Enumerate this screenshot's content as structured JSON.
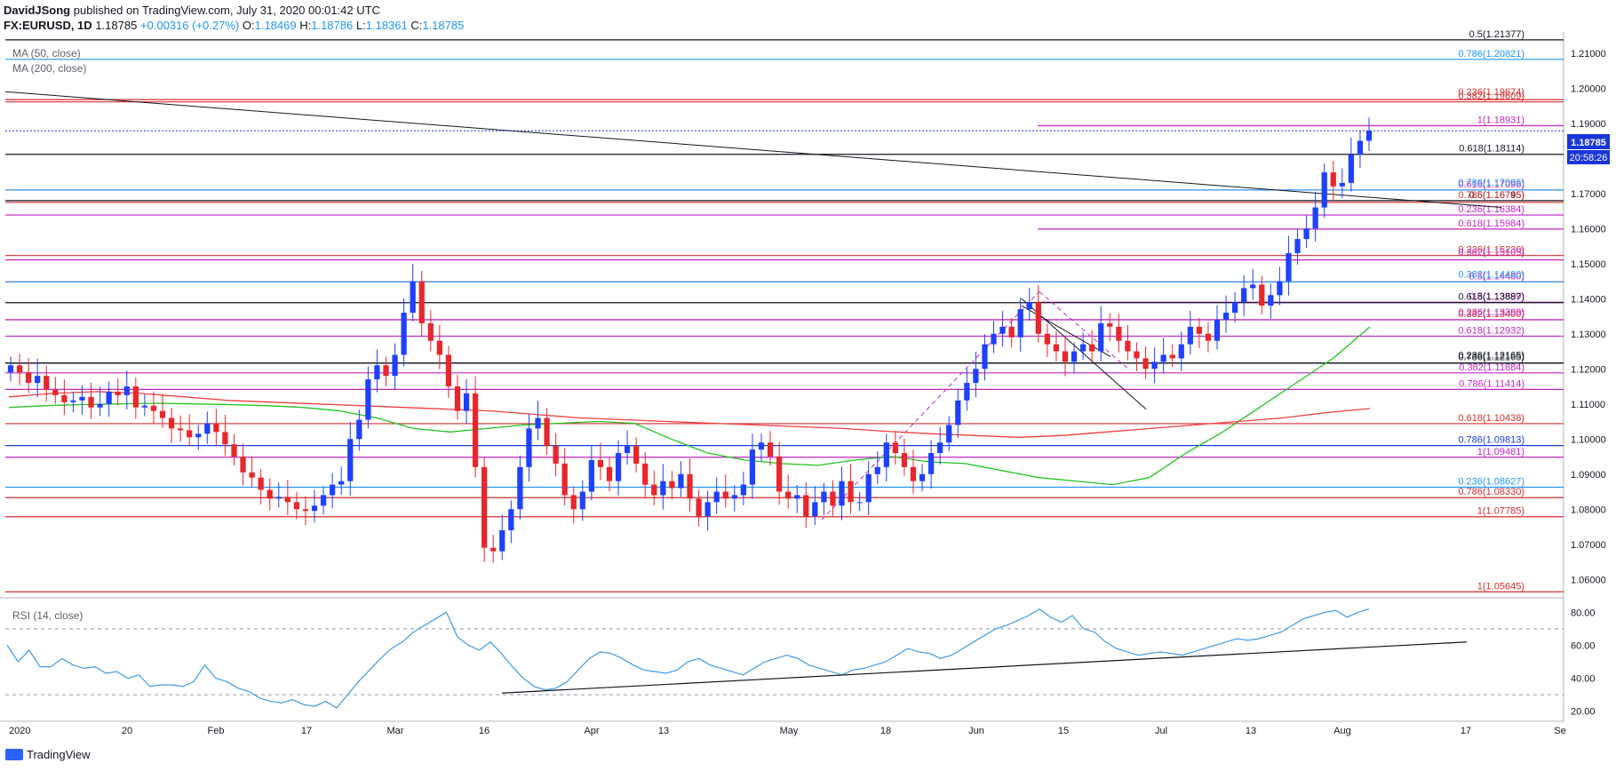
{
  "header": {
    "author": "DavidJSong",
    "published_text": "published on TradingView.com, July 31, 2020 00:01:42 UTC",
    "symbol": "FX:EURUSD, 1D",
    "last": "1.18785",
    "change": "+0.00316 (+0.27%)",
    "o_label": "O:",
    "o_value": "1.18469",
    "h_label": "H:",
    "h_value": "1.18786",
    "l_label": "L:",
    "l_value": "1.18361",
    "c_label": "C:",
    "c_value": "1.18785"
  },
  "legend": {
    "ma50": "MA (50, close)",
    "ma200": "MA (200, close)",
    "rsi": "RSI (14, close)"
  },
  "footer": {
    "brand": "TradingView"
  },
  "badges": {
    "price": "1.18785",
    "countdown": "20:58:26"
  },
  "colors": {
    "up": "#1e40ff",
    "down": "#e8262c",
    "ma50": "#22c322",
    "ma200": "#ef3f3f",
    "fib_black": "#131722",
    "fib_blue": "#2196f3",
    "fib_red": "#d32f2f",
    "fib_magenta": "#c226c2",
    "rsi": "#3d9be9",
    "price_badge": "#1936d6"
  },
  "chart_data": [
    {
      "type": "candlestick",
      "symbol": "FX:EURUSD",
      "interval": "1D",
      "ylim": [
        1.055,
        1.215
      ],
      "y_ticks": [
        "1.21000",
        "1.20000",
        "1.19000",
        "1.18000",
        "1.17000",
        "1.16000",
        "1.15000",
        "1.14000",
        "1.13000",
        "1.12000",
        "1.11000",
        "1.10000",
        "1.09000",
        "1.08000",
        "1.07000",
        "1.06000"
      ],
      "x_ticks": [
        "2020",
        "20",
        "Feb",
        "17",
        "Mar",
        "16",
        "Apr",
        "13",
        "May",
        "18",
        "Jun",
        "15",
        "Jul",
        "13",
        "Aug",
        "17",
        "Se"
      ],
      "close_series": [
        1.121,
        1.119,
        1.116,
        1.118,
        1.114,
        1.1125,
        1.1105,
        1.111,
        1.112,
        1.109,
        1.11,
        1.1135,
        1.1125,
        1.115,
        1.109,
        1.1095,
        1.108,
        1.106,
        1.103,
        1.1025,
        1.1005,
        1.1015,
        1.1045,
        1.102,
        1.0985,
        1.095,
        1.0905,
        1.089,
        1.0855,
        1.083,
        1.0835,
        1.082,
        1.08,
        1.0795,
        1.081,
        1.084,
        1.087,
        1.088,
        1.1,
        1.1055,
        1.117,
        1.121,
        1.118,
        1.124,
        1.136,
        1.145,
        1.133,
        1.128,
        1.124,
        1.115,
        1.108,
        1.113,
        1.092,
        1.069,
        1.068,
        1.074,
        1.08,
        1.092,
        1.103,
        1.106,
        1.098,
        1.093,
        1.084,
        1.08,
        1.085,
        1.094,
        1.092,
        1.088,
        1.096,
        1.098,
        1.093,
        1.087,
        1.084,
        1.088,
        1.086,
        1.09,
        1.083,
        1.078,
        1.082,
        1.085,
        1.083,
        1.084,
        1.087,
        1.097,
        1.099,
        1.095,
        1.085,
        1.083,
        1.084,
        1.078,
        1.082,
        1.085,
        1.081,
        1.088,
        1.082,
        1.082,
        1.09,
        1.092,
        1.099,
        1.096,
        1.092,
        1.088,
        1.09,
        1.096,
        1.099,
        1.104,
        1.111,
        1.116,
        1.12,
        1.127,
        1.13,
        1.132,
        1.129,
        1.137,
        1.139,
        1.13,
        1.127,
        1.125,
        1.122,
        1.125,
        1.127,
        1.125,
        1.133,
        1.132,
        1.128,
        1.125,
        1.123,
        1.12,
        1.122,
        1.124,
        1.123,
        1.127,
        1.132,
        1.13,
        1.128,
        1.134,
        1.136,
        1.139,
        1.143,
        1.144,
        1.138,
        1.141,
        1.145,
        1.153,
        1.157,
        1.16,
        1.166,
        1.176,
        1.172,
        1.173,
        1.181,
        1.185,
        1.1879
      ],
      "annotations": [
        "wedge support trendline",
        "channel (dashed magenta)",
        "long-term descending trendline"
      ]
    },
    {
      "type": "line",
      "name": "MA (50, close)",
      "values_note": "Moving average overlays",
      "ma50_series": [
        1.109,
        1.1095,
        1.1098,
        1.11,
        1.1102,
        1.11,
        1.1098,
        1.1095,
        1.109,
        1.108,
        1.106,
        1.103,
        1.102,
        1.103,
        1.104,
        1.1045,
        1.105,
        1.1045,
        1.1,
        1.096,
        1.094,
        1.093,
        1.0925,
        1.094,
        1.095,
        1.0935,
        1.093,
        1.091,
        1.089,
        1.088,
        1.087,
        1.089,
        1.096,
        1.102,
        1.109,
        1.116,
        1.123,
        1.132
      ],
      "ma200_series": [
        1.112,
        1.113,
        1.1135,
        1.113,
        1.112,
        1.111,
        1.1105,
        1.11,
        1.1095,
        1.109,
        1.1085,
        1.108,
        1.107,
        1.106,
        1.1055,
        1.105,
        1.1045,
        1.104,
        1.1035,
        1.103,
        1.1022,
        1.1015,
        1.101,
        1.1005,
        1.101,
        1.102,
        1.103,
        1.104,
        1.105,
        1.106,
        1.1075,
        1.1087
      ]
    },
    {
      "type": "line",
      "name": "RSI (14, close)",
      "ylim": [
        15,
        85
      ],
      "y_ticks": [
        "80.00",
        "60.00",
        "40.00",
        "20.00"
      ],
      "reference_levels": [
        70,
        30
      ],
      "values": [
        60,
        50,
        57,
        47,
        47,
        52,
        48,
        46,
        47,
        43,
        44,
        40,
        42,
        35,
        36,
        36,
        35,
        38,
        48,
        40,
        38,
        34,
        32,
        28,
        26,
        25,
        27,
        24,
        23,
        26,
        22,
        30,
        38,
        45,
        52,
        58,
        62,
        68,
        72,
        76,
        80,
        65,
        60,
        57,
        62,
        55,
        47,
        40,
        35,
        33,
        34,
        38,
        45,
        52,
        56,
        55,
        52,
        48,
        45,
        44,
        43,
        45,
        50,
        52,
        48,
        46,
        44,
        42,
        46,
        50,
        52,
        54,
        52,
        48,
        46,
        44,
        42,
        45,
        46,
        48,
        50,
        54,
        58,
        56,
        55,
        52,
        54,
        58,
        62,
        66,
        70,
        72,
        75,
        78,
        82,
        77,
        74,
        78,
        70,
        68,
        62,
        58,
        56,
        54,
        55,
        56,
        55,
        54,
        56,
        58,
        60,
        62,
        64,
        63,
        64,
        66,
        68,
        72,
        76,
        78,
        80,
        81,
        77,
        80,
        82
      ],
      "trendline_note": "rising support"
    }
  ],
  "fib_levels": [
    {
      "label": "0.5(1.21377)",
      "value": 1.21377,
      "color": "#131722",
      "x_start": "full"
    },
    {
      "label": "0.786(1.20821)",
      "value": 1.20821,
      "color": "#2196f3",
      "x_start": "full"
    },
    {
      "label": "0.236(1.19674)",
      "value": 1.19674,
      "color": "#d32f2f",
      "x_start": "full",
      "overlap": true
    },
    {
      "label": "0.382(1.19609)",
      "value": 1.19609,
      "color": "#d32f2f",
      "x_start": "full"
    },
    {
      "label": "1(1.18931)",
      "value": 1.18931,
      "color": "#c226c2",
      "x_start": "right"
    },
    {
      "label": "0.618(1.18114)",
      "value": 1.18114,
      "color": "#131722",
      "x_start": "full"
    },
    {
      "label": "0.618(1.17096)",
      "value": 1.17096,
      "color": "#c226c2",
      "x_start": "full"
    },
    {
      "label": "0.786(1.17096)",
      "value": 1.17096,
      "color": "#2196f3",
      "x_start": "full",
      "overlap": true
    },
    {
      "label": "0.5(1.16795)",
      "value": 1.16795,
      "color": "#131722",
      "x_start": "full"
    },
    {
      "label": "0.786(1.16745)",
      "value": 1.16745,
      "color": "#d32f2f",
      "x_start": "full",
      "overlap": true
    },
    {
      "label": "0.236(1.16384)",
      "value": 1.16384,
      "color": "#c226c2",
      "x_start": "full"
    },
    {
      "label": "0.618(1.15984)",
      "value": 1.15984,
      "color": "#c226c2",
      "x_start": "right"
    },
    {
      "label": "0.236(1.15230)",
      "value": 1.1523,
      "color": "#d32f2f",
      "x_start": "full"
    },
    {
      "label": "0.382(1.15105)",
      "value": 1.15105,
      "color": "#c226c2",
      "x_start": "full",
      "overlap": true
    },
    {
      "label": "0.5(1.14480)",
      "value": 1.1448,
      "color": "#c226c2",
      "x_start": "full"
    },
    {
      "label": "0.382(1.14480)",
      "value": 1.1448,
      "color": "#2196f3",
      "x_start": "full",
      "overlap": true
    },
    {
      "label": "0.5(1.13899)",
      "value": 1.13899,
      "color": "#c226c2",
      "x_start": "right"
    },
    {
      "label": "0.618(1.13887)",
      "value": 1.13887,
      "color": "#131722",
      "x_start": "full"
    },
    {
      "label": "0.382(1.13400)",
      "value": 1.134,
      "color": "#d32f2f",
      "x_start": "full"
    },
    {
      "label": "0.236(1.13399)",
      "value": 1.13399,
      "color": "#c226c2",
      "x_start": "full",
      "overlap": true
    },
    {
      "label": "0.618(1.12932)",
      "value": 1.12932,
      "color": "#c226c2",
      "x_start": "full"
    },
    {
      "label": "0.786(1.12165)",
      "value": 1.12165,
      "color": "#131722",
      "x_start": "full"
    },
    {
      "label": "0.236(1.12165)",
      "value": 1.12165,
      "color": "#131722",
      "x_start": "full",
      "overlap": true
    },
    {
      "label": "0.382(1.11884)",
      "value": 1.11884,
      "color": "#c226c2",
      "x_start": "full"
    },
    {
      "label": "0.786(1.11414)",
      "value": 1.11414,
      "color": "#c226c2",
      "x_start": "full"
    },
    {
      "label": "0.618(1.10438)",
      "value": 1.10438,
      "color": "#d32f2f",
      "x_start": "full"
    },
    {
      "label": "0.786(1.09813)",
      "value": 1.09813,
      "color": "#1a3fd4",
      "x_start": "full"
    },
    {
      "label": "1(1.09481)",
      "value": 1.09481,
      "color": "#c226c2",
      "x_start": "full"
    },
    {
      "label": "0.236(1.08627)",
      "value": 1.08627,
      "color": "#2196f3",
      "x_start": "full"
    },
    {
      "label": "0.786(1.08330)",
      "value": 1.0833,
      "color": "#d32f2f",
      "x_start": "full"
    },
    {
      "label": "1(1.07785)",
      "value": 1.07785,
      "color": "#d32f2f",
      "x_start": "full"
    },
    {
      "label": "1(1.05645)",
      "value": 1.05645,
      "color": "#d32f2f",
      "x_start": "full"
    }
  ]
}
